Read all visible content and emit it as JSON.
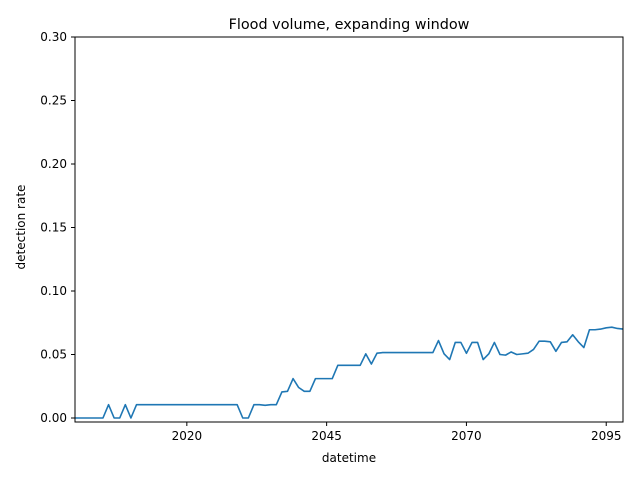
{
  "chart_data": {
    "type": "line",
    "title": "Flood volume, expanding window",
    "xlabel": "datetime",
    "ylabel": "detection rate",
    "xlim": [
      2000,
      2098
    ],
    "ylim": [
      0,
      0.3
    ],
    "x_ticks": [
      2020,
      2045,
      2070,
      2095
    ],
    "x_tick_labels": [
      "2020",
      "2045",
      "2070",
      "2095"
    ],
    "y_ticks": [
      0.0,
      0.05,
      0.1,
      0.15,
      0.2,
      0.25,
      0.3
    ],
    "y_tick_labels": [
      "0.00",
      "0.05",
      "0.10",
      "0.15",
      "0.20",
      "0.25",
      "0.30"
    ],
    "grid": false,
    "line_color": "#1f77b4",
    "series": [
      {
        "x": [
          2000,
          2001,
          2002,
          2003,
          2004,
          2005,
          2006,
          2007,
          2008,
          2009,
          2010,
          2011,
          2012,
          2013,
          2014,
          2015,
          2016,
          2017,
          2018,
          2019,
          2020,
          2021,
          2022,
          2023,
          2024,
          2025,
          2026,
          2027,
          2028,
          2029,
          2030,
          2031,
          2032,
          2033,
          2034,
          2035,
          2036,
          2037,
          2038,
          2039,
          2040,
          2041,
          2042,
          2043,
          2044,
          2045,
          2046,
          2047,
          2048,
          2049,
          2050,
          2051,
          2052,
          2053,
          2054,
          2055,
          2056,
          2057,
          2058,
          2059,
          2060,
          2061,
          2062,
          2063,
          2064,
          2065,
          2066,
          2067,
          2068,
          2069,
          2070,
          2071,
          2072,
          2073,
          2074,
          2075,
          2076,
          2077,
          2078,
          2079,
          2080,
          2081,
          2082,
          2083,
          2084,
          2085,
          2086,
          2087,
          2088,
          2089,
          2090,
          2091,
          2092,
          2093,
          2094,
          2095,
          2096,
          2097,
          2098
        ],
        "y": [
          0,
          0,
          0,
          0,
          0,
          0,
          0.0105,
          0,
          0,
          0.0105,
          0,
          0.0105,
          0.0105,
          0.0105,
          0.0105,
          0.0105,
          0.0105,
          0.0105,
          0.0105,
          0.0105,
          0.0105,
          0.0105,
          0.0105,
          0.0105,
          0.0105,
          0.0105,
          0.0105,
          0.0105,
          0.0105,
          0.0105,
          0,
          0,
          0.0105,
          0.0105,
          0.01,
          0.0105,
          0.0105,
          0.0205,
          0.021,
          0.031,
          0.024,
          0.021,
          0.021,
          0.031,
          0.031,
          0.031,
          0.031,
          0.0415,
          0.0415,
          0.0415,
          0.0415,
          0.0415,
          0.0505,
          0.0425,
          0.051,
          0.0515,
          0.0515,
          0.0515,
          0.0515,
          0.0515,
          0.0515,
          0.0515,
          0.0515,
          0.0515,
          0.0515,
          0.061,
          0.0505,
          0.046,
          0.0595,
          0.0595,
          0.051,
          0.0595,
          0.0595,
          0.046,
          0.0505,
          0.0595,
          0.05,
          0.0495,
          0.052,
          0.05,
          0.0505,
          0.051,
          0.054,
          0.0605,
          0.0605,
          0.06,
          0.0525,
          0.0595,
          0.06,
          0.0655,
          0.06,
          0.0555,
          0.0695,
          0.0695,
          0.07,
          0.071,
          0.0715,
          0.0705,
          0.07
        ]
      }
    ]
  }
}
